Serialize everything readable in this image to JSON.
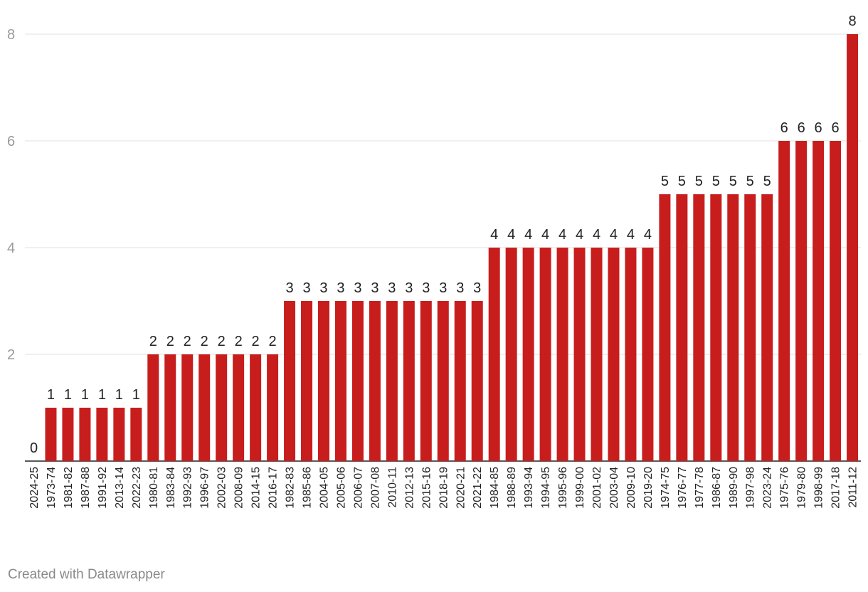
{
  "chart_data": {
    "type": "bar",
    "categories": [
      "2024-25",
      "1973-74",
      "1981-82",
      "1987-88",
      "1991-92",
      "2013-14",
      "2022-23",
      "1980-81",
      "1983-84",
      "1992-93",
      "1996-97",
      "2002-03",
      "2008-09",
      "2014-15",
      "2016-17",
      "1982-83",
      "1985-86",
      "2004-05",
      "2005-06",
      "2006-07",
      "2007-08",
      "2010-11",
      "2012-13",
      "2015-16",
      "2018-19",
      "2020-21",
      "2021-22",
      "1984-85",
      "1988-89",
      "1993-94",
      "1994-95",
      "1995-96",
      "1999-00",
      "2001-02",
      "2003-04",
      "2009-10",
      "2019-20",
      "1974-75",
      "1976-77",
      "1977-78",
      "1986-87",
      "1989-90",
      "1997-98",
      "2023-24",
      "1975-76",
      "1979-80",
      "1998-99",
      "2017-18",
      "2011-12"
    ],
    "values": [
      0,
      1,
      1,
      1,
      1,
      1,
      1,
      2,
      2,
      2,
      2,
      2,
      2,
      2,
      2,
      3,
      3,
      3,
      3,
      3,
      3,
      3,
      3,
      3,
      3,
      3,
      3,
      4,
      4,
      4,
      4,
      4,
      4,
      4,
      4,
      4,
      4,
      5,
      5,
      5,
      5,
      5,
      5,
      5,
      6,
      6,
      6,
      6,
      8
    ],
    "title": "",
    "xlabel": "",
    "ylabel": "",
    "ylim": [
      0,
      8
    ],
    "yticks": [
      2,
      4,
      6,
      8
    ],
    "grid": true,
    "data_labels": true,
    "bar_color": "#c71e1d"
  },
  "footer": {
    "credit": "Created with Datawrapper"
  }
}
